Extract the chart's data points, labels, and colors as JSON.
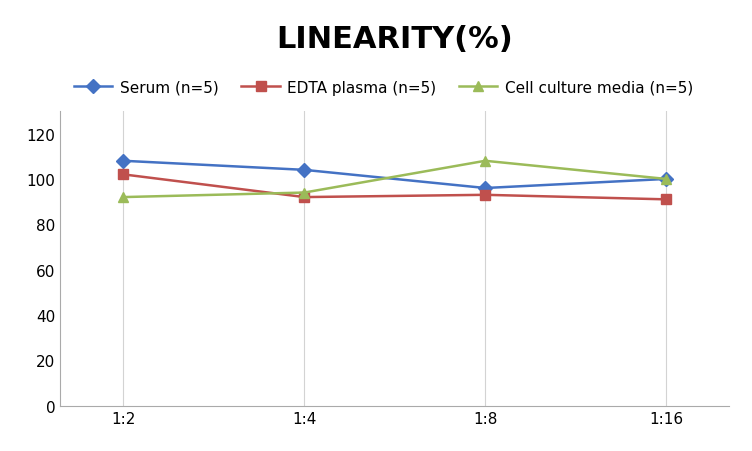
{
  "title": "LINEARITY(%)",
  "x_labels": [
    "1:2",
    "1:4",
    "1:8",
    "1:16"
  ],
  "x_positions": [
    0,
    1,
    2,
    3
  ],
  "series": [
    {
      "label": "Serum (n=5)",
      "color": "#4472C4",
      "marker": "D",
      "values": [
        108,
        104,
        96,
        100
      ]
    },
    {
      "label": "EDTA plasma (n=5)",
      "color": "#C0504D",
      "marker": "s",
      "values": [
        102,
        92,
        93,
        91
      ]
    },
    {
      "label": "Cell culture media (n=5)",
      "color": "#9BBB59",
      "marker": "^",
      "values": [
        92,
        94,
        108,
        100
      ]
    }
  ],
  "ylim": [
    0,
    130
  ],
  "yticks": [
    0,
    20,
    40,
    60,
    80,
    100,
    120
  ],
  "grid_color": "#D3D3D3",
  "background_color": "#FFFFFF",
  "title_fontsize": 22,
  "legend_fontsize": 11,
  "tick_fontsize": 11
}
